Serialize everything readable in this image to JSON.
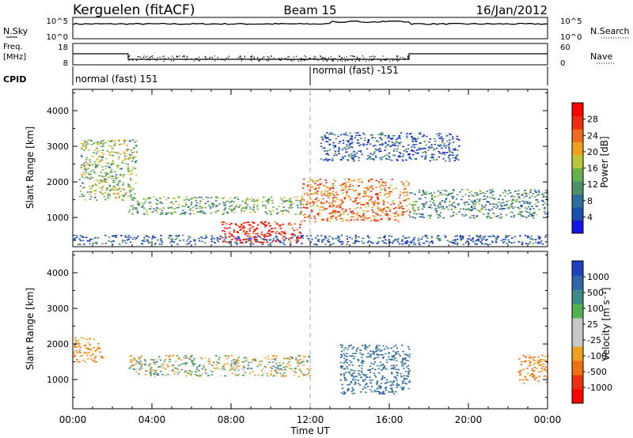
{
  "header": {
    "station": "Kerguelen (fitACF)",
    "beam": "Beam 15",
    "date": "16/Jan/2012"
  },
  "noise_panel": {
    "left_label": "N.Sky",
    "right_label": "N.Search",
    "left_ticks": [
      "10^5",
      "10^0"
    ],
    "right_ticks": [
      "10^5",
      "10^0"
    ]
  },
  "freq_panel": {
    "left_label_1": "Freq.",
    "left_label_2": "[MHz]",
    "right_label": "Nave",
    "left_ticks": [
      "18",
      "8"
    ],
    "right_ticks": [
      "60",
      "0"
    ]
  },
  "cpid": {
    "label": "CPID",
    "mode_1": "normal (fast) 151",
    "mode_2": "normal (fast) -151"
  },
  "time_axis": {
    "label": "Time UT",
    "ticks": [
      "00:00",
      "04:00",
      "08:00",
      "12:00",
      "16:00",
      "20:00",
      "00:00"
    ]
  },
  "colors": {
    "power": [
      "#1515e6",
      "#1a4fb0",
      "#2e6e9a",
      "#4f8f6a",
      "#68b04e",
      "#b8c83a",
      "#f0a21d",
      "#f06b1a",
      "#f02a10",
      "#ff0000"
    ],
    "velocity": [
      "#2040c0",
      "#3066a8",
      "#3e8a8a",
      "#55b050",
      "#c8c8c8",
      "#c8c8c8",
      "#f0a020",
      "#f07010",
      "#ee3010",
      "#ff0000"
    ]
  },
  "chart_data": [
    {
      "type": "heatmap",
      "title": "",
      "xlabel": "",
      "ylabel": "Slant Range [km]",
      "x_range_hours": [
        0,
        24
      ],
      "ylim": [
        180,
        4600
      ],
      "y_ticks": [
        "1000",
        "2000",
        "3000",
        "4000"
      ],
      "colorbar": {
        "label": "Power [dB]",
        "ticks": [
          "28",
          "24",
          "20",
          "16",
          "12",
          "8",
          "4"
        ],
        "range": [
          0,
          30
        ]
      },
      "features": [
        {
          "name": "near-range band",
          "x": [
            0,
            24
          ],
          "y": [
            250,
            520
          ],
          "level": 6
        },
        {
          "name": "early-morning streak",
          "x": [
            0.3,
            3.2
          ],
          "y": [
            1500,
            3200
          ],
          "level": 14
        },
        {
          "name": "main band",
          "x": [
            2.8,
            11.5
          ],
          "y": [
            1100,
            1600
          ],
          "level": 12
        },
        {
          "name": "noon enhancement",
          "x": [
            7.5,
            11.5
          ],
          "y": [
            300,
            900
          ],
          "level": 28
        },
        {
          "name": "afternoon band",
          "x": [
            11.5,
            17
          ],
          "y": [
            900,
            2100
          ],
          "level": 22
        },
        {
          "name": "evening streak",
          "x": [
            17,
            24
          ],
          "y": [
            1000,
            1800
          ],
          "level": 10
        },
        {
          "name": "far-range patch",
          "x": [
            12.5,
            19.5
          ],
          "y": [
            2600,
            3400
          ],
          "level": 6
        }
      ]
    },
    {
      "type": "heatmap",
      "title": "",
      "xlabel": "Time UT",
      "ylabel": "Slant Range [km]",
      "x_range_hours": [
        0,
        24
      ],
      "ylim": [
        180,
        4600
      ],
      "y_ticks": [
        "1000",
        "2000",
        "3000",
        "4000"
      ],
      "colorbar": {
        "label": "Velocity [m s⁻¹]",
        "ticks": [
          "1000",
          "500",
          "100",
          "25",
          "-25",
          "-100",
          "-500",
          "-1000"
        ],
        "range": [
          -1000,
          1000
        ]
      },
      "features": [
        {
          "name": "ground scatter band",
          "x": [
            2.8,
            12
          ],
          "y": [
            1100,
            1700
          ],
          "velocity": 0
        },
        {
          "name": "early toward flow",
          "x": [
            0,
            1.5
          ],
          "y": [
            1500,
            2200
          ],
          "velocity": -200
        },
        {
          "name": "afternoon away flow",
          "x": [
            13.5,
            17
          ],
          "y": [
            600,
            2000
          ],
          "velocity": 300
        },
        {
          "name": "evening toward flow",
          "x": [
            22.5,
            24
          ],
          "y": [
            900,
            1700
          ],
          "velocity": -300
        }
      ]
    }
  ]
}
